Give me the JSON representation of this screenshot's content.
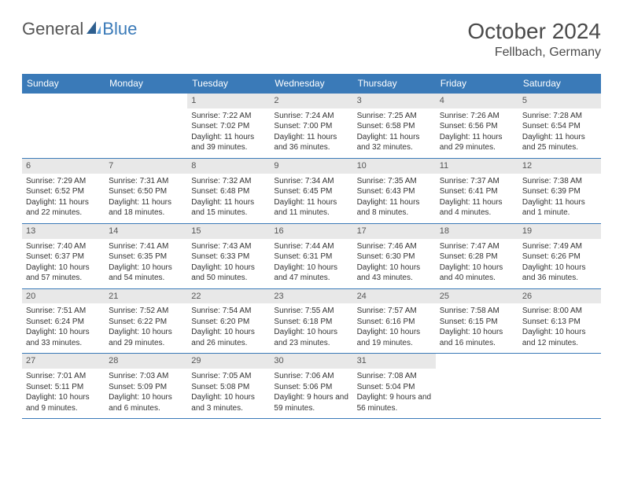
{
  "logo": {
    "text1": "General",
    "text2": "Blue"
  },
  "title": "October 2024",
  "location": "Fellbach, Germany",
  "colors": {
    "header_bg": "#3a7ab8",
    "header_text": "#ffffff",
    "daynum_bg": "#e8e8e8",
    "border": "#3a7ab8",
    "body_text": "#333333",
    "title_text": "#4a4a4a"
  },
  "weekdays": [
    "Sunday",
    "Monday",
    "Tuesday",
    "Wednesday",
    "Thursday",
    "Friday",
    "Saturday"
  ],
  "weeks": [
    [
      null,
      null,
      {
        "n": "1",
        "sr": "Sunrise: 7:22 AM",
        "ss": "Sunset: 7:02 PM",
        "dl": "Daylight: 11 hours and 39 minutes."
      },
      {
        "n": "2",
        "sr": "Sunrise: 7:24 AM",
        "ss": "Sunset: 7:00 PM",
        "dl": "Daylight: 11 hours and 36 minutes."
      },
      {
        "n": "3",
        "sr": "Sunrise: 7:25 AM",
        "ss": "Sunset: 6:58 PM",
        "dl": "Daylight: 11 hours and 32 minutes."
      },
      {
        "n": "4",
        "sr": "Sunrise: 7:26 AM",
        "ss": "Sunset: 6:56 PM",
        "dl": "Daylight: 11 hours and 29 minutes."
      },
      {
        "n": "5",
        "sr": "Sunrise: 7:28 AM",
        "ss": "Sunset: 6:54 PM",
        "dl": "Daylight: 11 hours and 25 minutes."
      }
    ],
    [
      {
        "n": "6",
        "sr": "Sunrise: 7:29 AM",
        "ss": "Sunset: 6:52 PM",
        "dl": "Daylight: 11 hours and 22 minutes."
      },
      {
        "n": "7",
        "sr": "Sunrise: 7:31 AM",
        "ss": "Sunset: 6:50 PM",
        "dl": "Daylight: 11 hours and 18 minutes."
      },
      {
        "n": "8",
        "sr": "Sunrise: 7:32 AM",
        "ss": "Sunset: 6:48 PM",
        "dl": "Daylight: 11 hours and 15 minutes."
      },
      {
        "n": "9",
        "sr": "Sunrise: 7:34 AM",
        "ss": "Sunset: 6:45 PM",
        "dl": "Daylight: 11 hours and 11 minutes."
      },
      {
        "n": "10",
        "sr": "Sunrise: 7:35 AM",
        "ss": "Sunset: 6:43 PM",
        "dl": "Daylight: 11 hours and 8 minutes."
      },
      {
        "n": "11",
        "sr": "Sunrise: 7:37 AM",
        "ss": "Sunset: 6:41 PM",
        "dl": "Daylight: 11 hours and 4 minutes."
      },
      {
        "n": "12",
        "sr": "Sunrise: 7:38 AM",
        "ss": "Sunset: 6:39 PM",
        "dl": "Daylight: 11 hours and 1 minute."
      }
    ],
    [
      {
        "n": "13",
        "sr": "Sunrise: 7:40 AM",
        "ss": "Sunset: 6:37 PM",
        "dl": "Daylight: 10 hours and 57 minutes."
      },
      {
        "n": "14",
        "sr": "Sunrise: 7:41 AM",
        "ss": "Sunset: 6:35 PM",
        "dl": "Daylight: 10 hours and 54 minutes."
      },
      {
        "n": "15",
        "sr": "Sunrise: 7:43 AM",
        "ss": "Sunset: 6:33 PM",
        "dl": "Daylight: 10 hours and 50 minutes."
      },
      {
        "n": "16",
        "sr": "Sunrise: 7:44 AM",
        "ss": "Sunset: 6:31 PM",
        "dl": "Daylight: 10 hours and 47 minutes."
      },
      {
        "n": "17",
        "sr": "Sunrise: 7:46 AM",
        "ss": "Sunset: 6:30 PM",
        "dl": "Daylight: 10 hours and 43 minutes."
      },
      {
        "n": "18",
        "sr": "Sunrise: 7:47 AM",
        "ss": "Sunset: 6:28 PM",
        "dl": "Daylight: 10 hours and 40 minutes."
      },
      {
        "n": "19",
        "sr": "Sunrise: 7:49 AM",
        "ss": "Sunset: 6:26 PM",
        "dl": "Daylight: 10 hours and 36 minutes."
      }
    ],
    [
      {
        "n": "20",
        "sr": "Sunrise: 7:51 AM",
        "ss": "Sunset: 6:24 PM",
        "dl": "Daylight: 10 hours and 33 minutes."
      },
      {
        "n": "21",
        "sr": "Sunrise: 7:52 AM",
        "ss": "Sunset: 6:22 PM",
        "dl": "Daylight: 10 hours and 29 minutes."
      },
      {
        "n": "22",
        "sr": "Sunrise: 7:54 AM",
        "ss": "Sunset: 6:20 PM",
        "dl": "Daylight: 10 hours and 26 minutes."
      },
      {
        "n": "23",
        "sr": "Sunrise: 7:55 AM",
        "ss": "Sunset: 6:18 PM",
        "dl": "Daylight: 10 hours and 23 minutes."
      },
      {
        "n": "24",
        "sr": "Sunrise: 7:57 AM",
        "ss": "Sunset: 6:16 PM",
        "dl": "Daylight: 10 hours and 19 minutes."
      },
      {
        "n": "25",
        "sr": "Sunrise: 7:58 AM",
        "ss": "Sunset: 6:15 PM",
        "dl": "Daylight: 10 hours and 16 minutes."
      },
      {
        "n": "26",
        "sr": "Sunrise: 8:00 AM",
        "ss": "Sunset: 6:13 PM",
        "dl": "Daylight: 10 hours and 12 minutes."
      }
    ],
    [
      {
        "n": "27",
        "sr": "Sunrise: 7:01 AM",
        "ss": "Sunset: 5:11 PM",
        "dl": "Daylight: 10 hours and 9 minutes."
      },
      {
        "n": "28",
        "sr": "Sunrise: 7:03 AM",
        "ss": "Sunset: 5:09 PM",
        "dl": "Daylight: 10 hours and 6 minutes."
      },
      {
        "n": "29",
        "sr": "Sunrise: 7:05 AM",
        "ss": "Sunset: 5:08 PM",
        "dl": "Daylight: 10 hours and 3 minutes."
      },
      {
        "n": "30",
        "sr": "Sunrise: 7:06 AM",
        "ss": "Sunset: 5:06 PM",
        "dl": "Daylight: 9 hours and 59 minutes."
      },
      {
        "n": "31",
        "sr": "Sunrise: 7:08 AM",
        "ss": "Sunset: 5:04 PM",
        "dl": "Daylight: 9 hours and 56 minutes."
      },
      null,
      null
    ]
  ]
}
